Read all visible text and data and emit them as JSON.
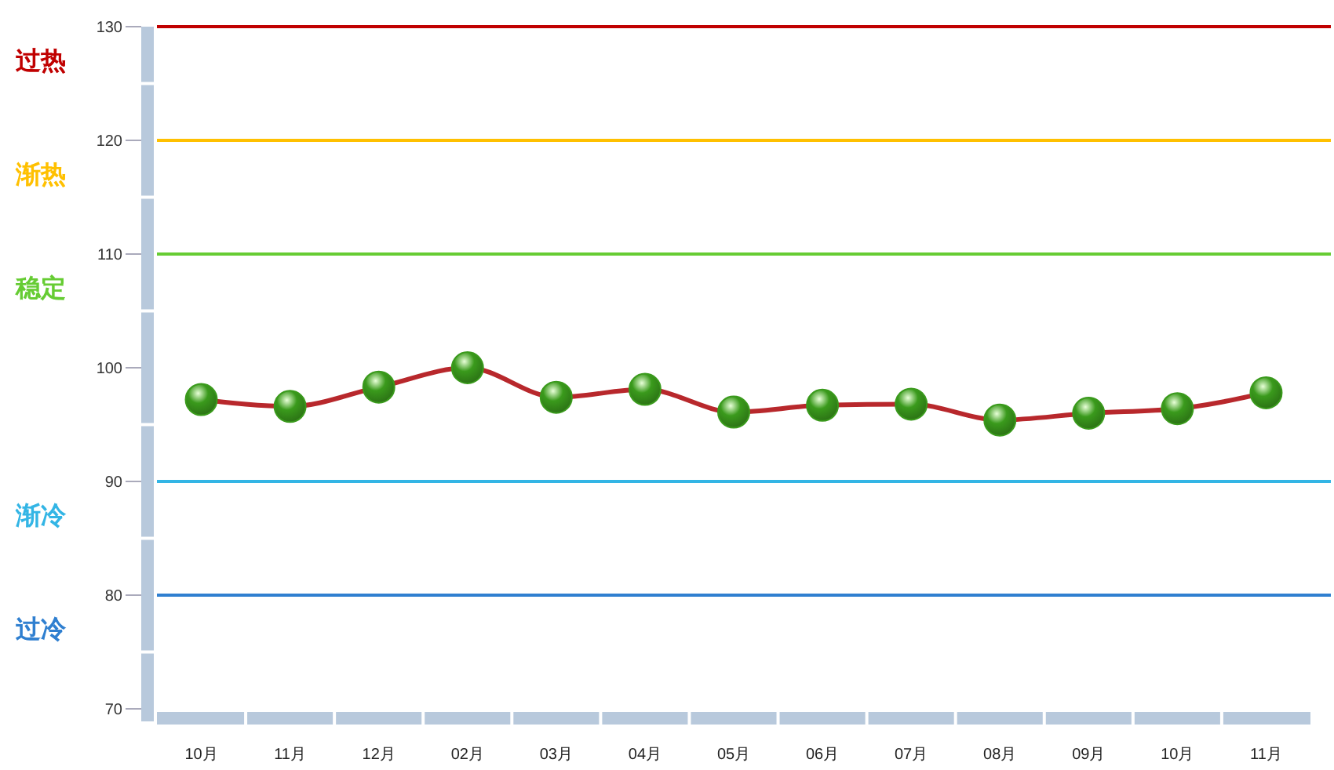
{
  "chart_data": {
    "type": "line",
    "categories": [
      "10月",
      "11月",
      "12月",
      "02月",
      "03月",
      "04月",
      "05月",
      "06月",
      "07月",
      "08月",
      "09月",
      "10月",
      "11月"
    ],
    "series": [
      {
        "color": "#b8282c",
        "colors": [
          "#3a9a1c",
          "#3a9a1c",
          "#3a9a1c",
          "#3a9a1c",
          "#3a9a1c",
          "#3a9a1c",
          "#3a9a1c",
          "#3a9a1c",
          "#3a9a1c",
          "#3a9a1c",
          "#3a9a1c",
          "#3a9a1c",
          "#3a9a1c"
        ],
        "values": [
          97.2,
          96.6,
          98.3,
          100.0,
          97.4,
          98.1,
          96.1,
          96.7,
          96.8,
          95.4,
          96.0,
          96.4,
          97.8
        ]
      }
    ],
    "ylim": [
      70,
      130
    ],
    "yticks": [
      70,
      80,
      90,
      100,
      110,
      120,
      130
    ],
    "grid": false,
    "marker": "circle",
    "line_style": "solid",
    "ref_lines": [
      {
        "axis": "y",
        "value": 130,
        "label": "过热",
        "color": "#c00000"
      },
      {
        "axis": "y",
        "value": 120,
        "label": "渐热",
        "color": "#ffc000"
      },
      {
        "axis": "y",
        "value": 110,
        "label": "稳定",
        "color": "#66cc33"
      },
      {
        "axis": "y",
        "value": 90,
        "label": "渐冷",
        "color": "#33b5e5"
      },
      {
        "axis": "y",
        "value": 80,
        "label": "过冷",
        "color": "#2f7fd0"
      }
    ]
  }
}
